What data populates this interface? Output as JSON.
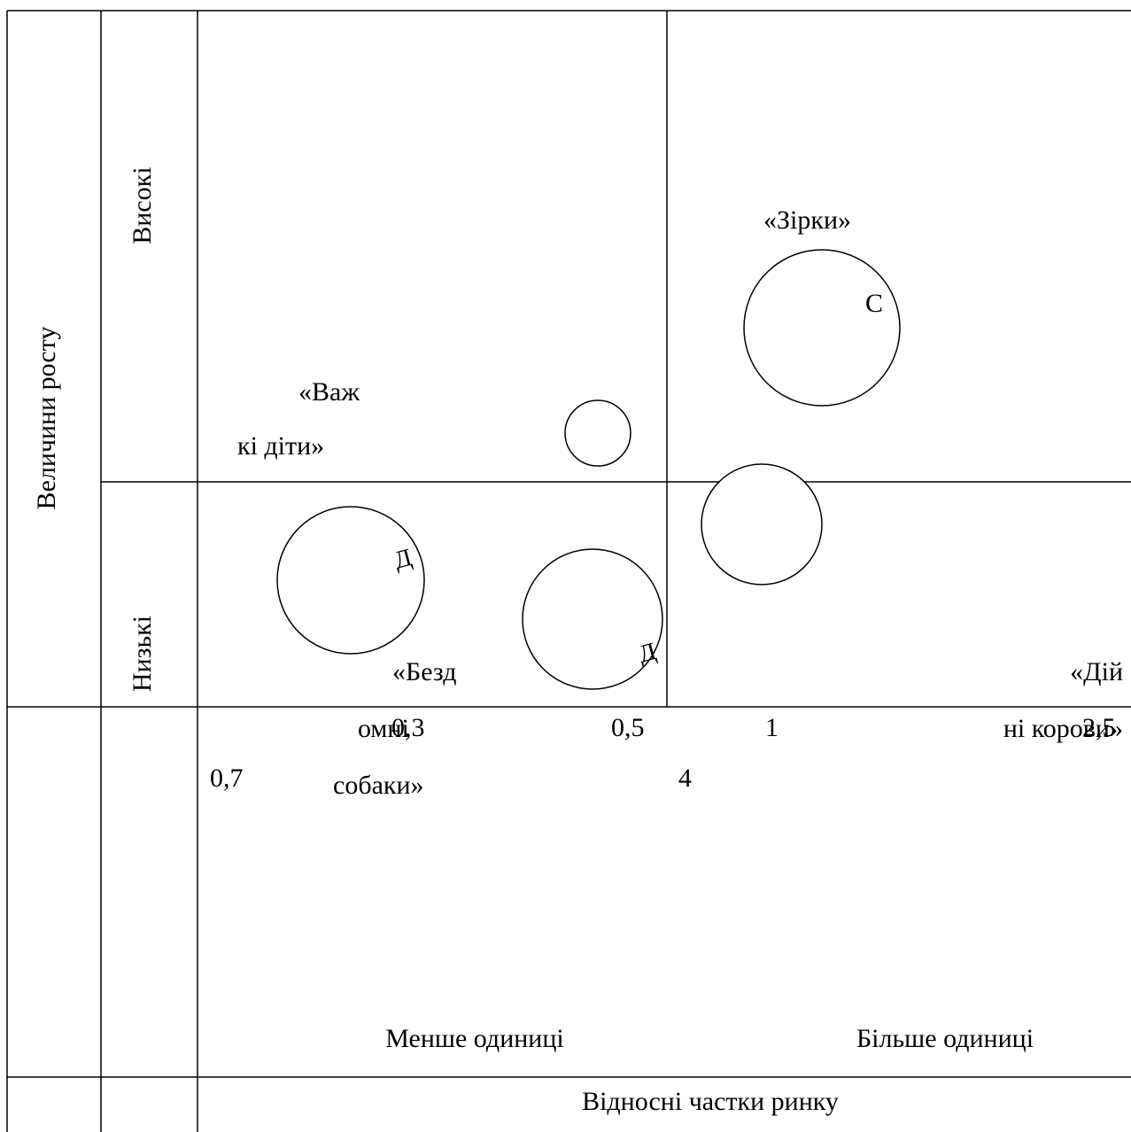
{
  "axis": {
    "y_title": "Величини росту",
    "y_high": "Високі",
    "y_low": "Низькі",
    "x_title": "Відносні частки ринку",
    "x_low": "Менше одиниці",
    "x_high": "Більше одиниці"
  },
  "ticks": {
    "t1": "0,3",
    "t2": "0,5",
    "t3": "1",
    "t4": "2,5",
    "t5": "0,7",
    "t6": "4"
  },
  "quadrants": {
    "problem_children": {
      "line1": "«Важ",
      "line2": "кі діти»"
    },
    "stars": {
      "line1": "«Зірки»"
    },
    "dogs": {
      "line1": "«Безд",
      "line2": "омні",
      "line3": "собаки»"
    },
    "cash_cows": {
      "line1": "«Дій",
      "line2": "ні корови»"
    }
  },
  "bubble_marks": {
    "stars_mark": "С",
    "dog_left_mark": "Д",
    "dog_right_mark": "Д"
  }
}
